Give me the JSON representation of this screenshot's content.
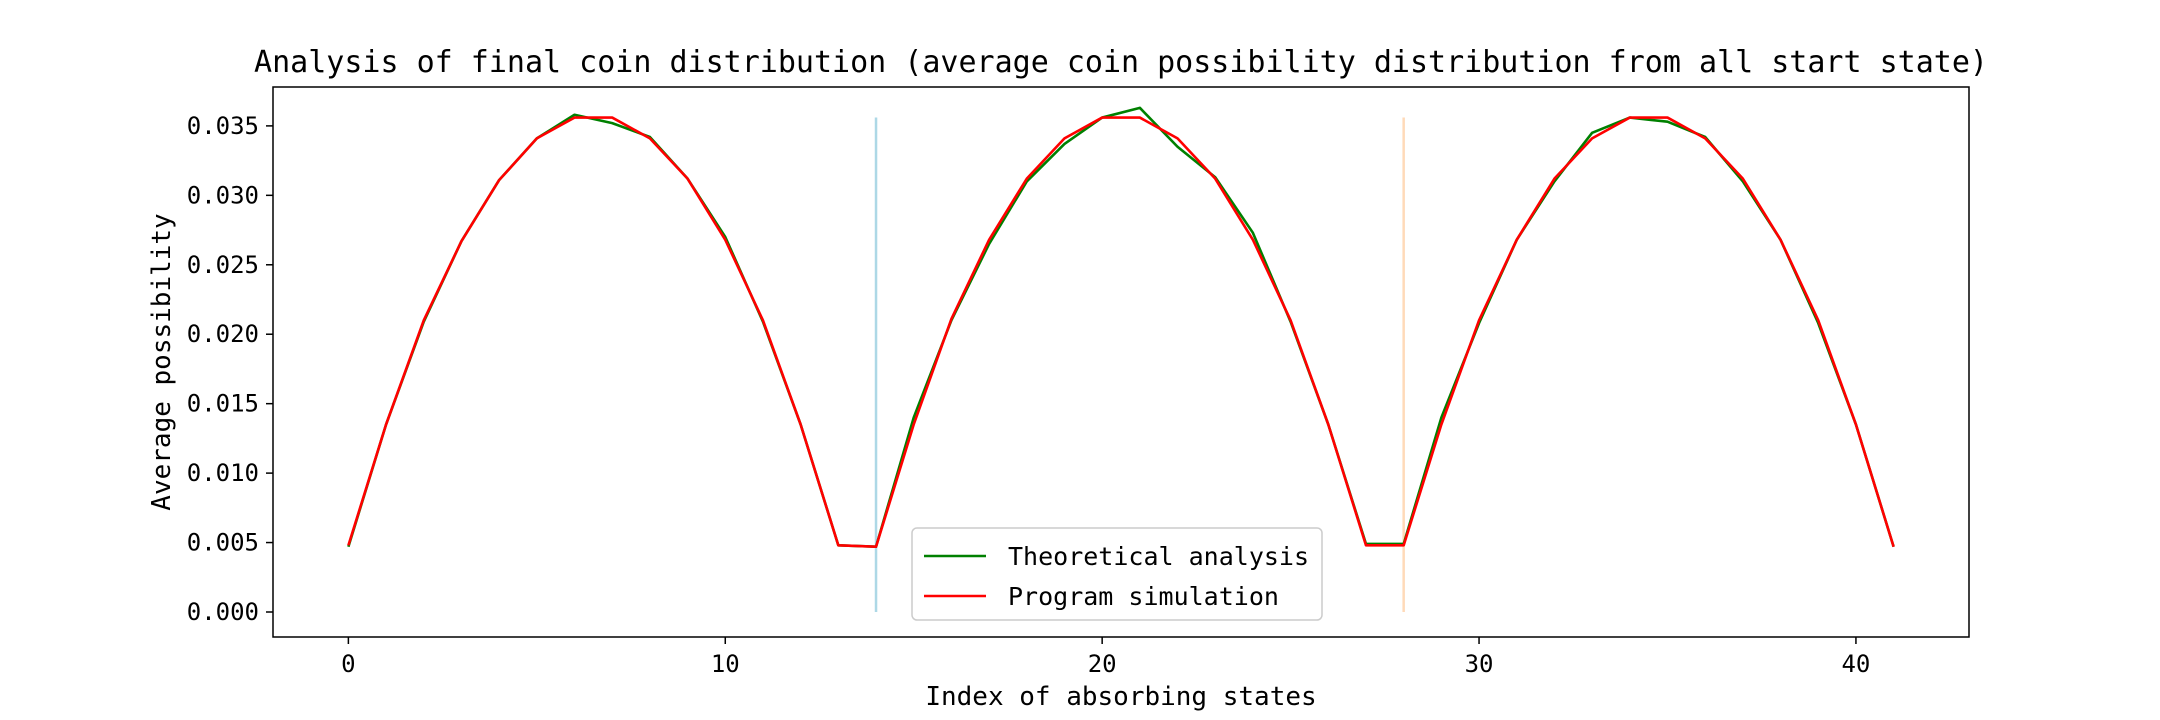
{
  "chart_data": {
    "type": "line",
    "title": "Analysis of final coin distribution (average coin possibility distribution from all start state)",
    "xlabel": "Index of absorbing states",
    "ylabel": "Average possibility",
    "xlim": [
      -2,
      43
    ],
    "ylim": [
      -0.0018,
      0.0378
    ],
    "xticks": [
      0,
      10,
      20,
      30,
      40
    ],
    "xtick_labels": [
      "0",
      "10",
      "20",
      "30",
      "40"
    ],
    "yticks": [
      0.0,
      0.005,
      0.01,
      0.015,
      0.02,
      0.025,
      0.03,
      0.035
    ],
    "ytick_labels": [
      "0.000",
      "0.005",
      "0.010",
      "0.015",
      "0.020",
      "0.025",
      "0.030",
      "0.035"
    ],
    "grid": false,
    "legend": "lower-center",
    "series": [
      {
        "name": "Theoretical analysis",
        "color": "#008000",
        "x": [
          0,
          1,
          2,
          3,
          4,
          5,
          6,
          7,
          8,
          9,
          10,
          11,
          12,
          13,
          14,
          15,
          16,
          17,
          18,
          19,
          20,
          21,
          22,
          23,
          24,
          25,
          26,
          27,
          28,
          29,
          30,
          31,
          32,
          33,
          34,
          35,
          36,
          37,
          38,
          39,
          40,
          41
        ],
        "values": [
          0.0047,
          0.0135,
          0.0209,
          0.0267,
          0.0311,
          0.0341,
          0.0358,
          0.0352,
          0.0342,
          0.0312,
          0.027,
          0.0209,
          0.0135,
          0.0048,
          0.0047,
          0.014,
          0.021,
          0.0265,
          0.031,
          0.0337,
          0.0356,
          0.0363,
          0.0335,
          0.0313,
          0.0273,
          0.0209,
          0.0135,
          0.0049,
          0.0049,
          0.014,
          0.0208,
          0.0268,
          0.031,
          0.0345,
          0.0356,
          0.0353,
          0.0342,
          0.031,
          0.0268,
          0.0208,
          0.0135,
          0.0047
        ]
      },
      {
        "name": "Program simulation",
        "color": "#ff0000",
        "x": [
          0,
          1,
          2,
          3,
          4,
          5,
          6,
          7,
          8,
          9,
          10,
          11,
          12,
          13,
          14,
          15,
          16,
          17,
          18,
          19,
          20,
          21,
          22,
          23,
          24,
          25,
          26,
          27,
          28,
          29,
          30,
          31,
          32,
          33,
          34,
          35,
          36,
          37,
          38,
          39,
          40,
          41
        ],
        "values": [
          0.0048,
          0.0135,
          0.021,
          0.0267,
          0.0311,
          0.0341,
          0.0356,
          0.0356,
          0.0341,
          0.0312,
          0.0268,
          0.021,
          0.0135,
          0.0048,
          0.0047,
          0.0135,
          0.0211,
          0.0268,
          0.0312,
          0.0341,
          0.0356,
          0.0356,
          0.0341,
          0.0312,
          0.0268,
          0.021,
          0.0135,
          0.0048,
          0.0048,
          0.0135,
          0.021,
          0.0268,
          0.0312,
          0.0341,
          0.0356,
          0.0356,
          0.0341,
          0.0312,
          0.0268,
          0.021,
          0.0135,
          0.0047
        ]
      }
    ],
    "vlines": [
      {
        "x": 14,
        "y_range": [
          0.0,
          0.0356
        ],
        "color": "#add8e6"
      },
      {
        "x": 28,
        "y_range": [
          0.0,
          0.0356
        ],
        "color": "#ffdab9"
      }
    ]
  }
}
